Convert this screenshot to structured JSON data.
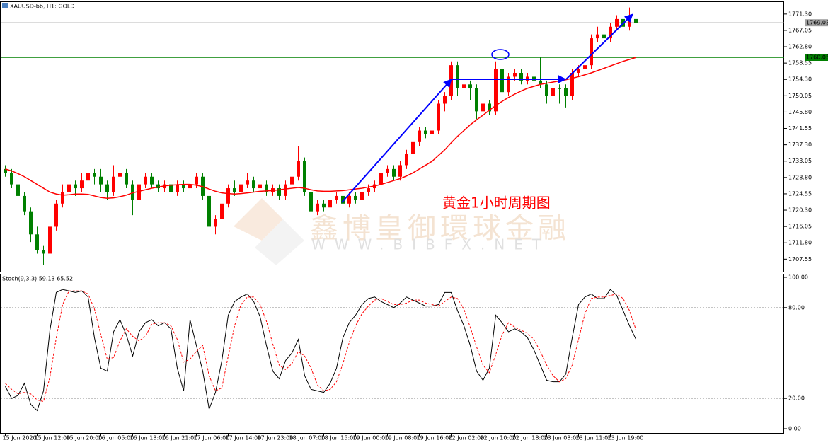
{
  "chart_data": {
    "type": "candlestick",
    "title": "XAUUSD-bb, H1:  GOLD",
    "categories": [
      "15 Jun 2020",
      null,
      null,
      null,
      null,
      "15 Jun 12:00",
      null,
      null,
      null,
      null,
      "15 Jun 20:00",
      null,
      null,
      null,
      null,
      "16 Jun 05:00",
      null,
      null,
      null,
      null,
      "16 Jun 13:00",
      null,
      null,
      null,
      null,
      "16 Jun 21:00",
      null,
      null,
      null,
      null,
      "17 Jun 06:00",
      null,
      null,
      null,
      null,
      "17 Jun 14:00",
      null,
      null,
      null,
      null,
      "17 Jun 23:00",
      null,
      null,
      null,
      null,
      "18 Jun 07:00",
      null,
      null,
      null,
      null,
      "18 Jun 15:00",
      null,
      null,
      null,
      null,
      "19 Jun 00:00",
      null,
      null,
      null,
      null,
      "19 Jun 08:00",
      null,
      null,
      null,
      null,
      "19 Jun 16:00",
      null,
      null,
      null,
      null,
      "22 Jun 02:00",
      null,
      null,
      null,
      null,
      "22 Jun 10:00",
      null,
      null,
      null,
      null,
      "22 Jun 18:00",
      null,
      null,
      null,
      null,
      "23 Jun 03:00",
      null,
      null,
      null,
      null,
      "23 Jun 11:00",
      null,
      null,
      null,
      null,
      "23 Jun 19:00",
      null,
      null,
      null,
      null
    ],
    "ohlc": [
      [
        1731,
        1732,
        1729,
        1730
      ],
      [
        1730,
        1731,
        1726,
        1727
      ],
      [
        1727,
        1728,
        1723,
        1724
      ],
      [
        1724,
        1725,
        1719,
        1720
      ],
      [
        1720,
        1721,
        1712,
        1714
      ],
      [
        1714,
        1716,
        1709,
        1710
      ],
      [
        1710,
        1711,
        1706,
        1709
      ],
      [
        1709,
        1717,
        1708,
        1716
      ],
      [
        1716,
        1723,
        1715,
        1722
      ],
      [
        1722,
        1727,
        1721,
        1725
      ],
      [
        1725,
        1729,
        1724,
        1727
      ],
      [
        1727,
        1728,
        1724,
        1726
      ],
      [
        1726,
        1730,
        1725,
        1728
      ],
      [
        1728,
        1732,
        1727,
        1730
      ],
      [
        1730,
        1731,
        1727,
        1729
      ],
      [
        1729,
        1731,
        1725,
        1727
      ],
      [
        1727,
        1728,
        1723,
        1725
      ],
      [
        1725,
        1732,
        1724,
        1729
      ],
      [
        1729,
        1731,
        1728,
        1730
      ],
      [
        1730,
        1731,
        1726,
        1727
      ],
      [
        1727,
        1728,
        1719,
        1723
      ],
      [
        1723,
        1728,
        1722,
        1727
      ],
      [
        1727,
        1730,
        1726,
        1729
      ],
      [
        1729,
        1730,
        1726,
        1727
      ],
      [
        1727,
        1728,
        1725,
        1726
      ],
      [
        1726,
        1728,
        1725,
        1727
      ],
      [
        1727,
        1728,
        1724,
        1725
      ],
      [
        1725,
        1728,
        1724,
        1727
      ],
      [
        1727,
        1728,
        1725,
        1726
      ],
      [
        1726,
        1729,
        1725,
        1727
      ],
      [
        1727,
        1730,
        1726,
        1729
      ],
      [
        1729,
        1730,
        1723,
        1724
      ],
      [
        1724,
        1725,
        1713,
        1716
      ],
      [
        1716,
        1719,
        1714,
        1718
      ],
      [
        1718,
        1723,
        1717,
        1722
      ],
      [
        1722,
        1727,
        1721,
        1726
      ],
      [
        1726,
        1728,
        1724,
        1725
      ],
      [
        1725,
        1729,
        1724,
        1727
      ],
      [
        1727,
        1730,
        1726,
        1728
      ],
      [
        1728,
        1729,
        1725,
        1726
      ],
      [
        1726,
        1729,
        1725,
        1727
      ],
      [
        1727,
        1728,
        1724,
        1725
      ],
      [
        1725,
        1727,
        1724,
        1726
      ],
      [
        1726,
        1727,
        1723,
        1724
      ],
      [
        1724,
        1728,
        1723,
        1727
      ],
      [
        1727,
        1734,
        1726,
        1729
      ],
      [
        1729,
        1737,
        1728,
        1733
      ],
      [
        1733,
        1734,
        1724,
        1725
      ],
      [
        1725,
        1726,
        1718,
        1720
      ],
      [
        1720,
        1723,
        1719,
        1722
      ],
      [
        1722,
        1723,
        1720,
        1721
      ],
      [
        1721,
        1724,
        1720,
        1723
      ],
      [
        1723,
        1725,
        1722,
        1724
      ],
      [
        1724,
        1725,
        1721,
        1722
      ],
      [
        1722,
        1725,
        1721,
        1724
      ],
      [
        1724,
        1725,
        1722,
        1723
      ],
      [
        1723,
        1726,
        1722,
        1725
      ],
      [
        1725,
        1727,
        1724,
        1726
      ],
      [
        1726,
        1728,
        1725,
        1727
      ],
      [
        1727,
        1731,
        1726,
        1730
      ],
      [
        1730,
        1732,
        1729,
        1731
      ],
      [
        1731,
        1732,
        1728,
        1729
      ],
      [
        1729,
        1733,
        1728,
        1732
      ],
      [
        1732,
        1736,
        1731,
        1735
      ],
      [
        1735,
        1739,
        1734,
        1738
      ],
      [
        1738,
        1742,
        1737,
        1741
      ],
      [
        1741,
        1742,
        1739,
        1740
      ],
      [
        1740,
        1742,
        1739,
        1741
      ],
      [
        1741,
        1749,
        1740,
        1748
      ],
      [
        1748,
        1751,
        1746,
        1750
      ],
      [
        1750,
        1759,
        1749,
        1758
      ],
      [
        1758,
        1759,
        1750,
        1752
      ],
      [
        1752,
        1754,
        1751,
        1753
      ],
      [
        1753,
        1754,
        1749,
        1752
      ],
      [
        1752,
        1753,
        1744,
        1746
      ],
      [
        1746,
        1749,
        1745,
        1748
      ],
      [
        1748,
        1749,
        1745,
        1746
      ],
      [
        1746,
        1759,
        1745,
        1757
      ],
      [
        1757,
        1763,
        1750,
        1751
      ],
      [
        1751,
        1756,
        1750,
        1755
      ],
      [
        1755,
        1757,
        1754,
        1756
      ],
      [
        1756,
        1757,
        1753,
        1754
      ],
      [
        1754,
        1756,
        1753,
        1755
      ],
      [
        1755,
        1756,
        1752,
        1754
      ],
      [
        1754,
        1760,
        1752,
        1753
      ],
      [
        1753,
        1754,
        1748,
        1750
      ],
      [
        1750,
        1753,
        1749,
        1752
      ],
      [
        1752,
        1753,
        1748,
        1752
      ],
      [
        1752,
        1753,
        1747,
        1750
      ],
      [
        1750,
        1757,
        1749,
        1756
      ],
      [
        1756,
        1758,
        1755,
        1757
      ],
      [
        1757,
        1759,
        1756,
        1758
      ],
      [
        1758,
        1766,
        1757,
        1765
      ],
      [
        1765,
        1768,
        1764,
        1766
      ],
      [
        1766,
        1767,
        1763,
        1765
      ],
      [
        1765,
        1769,
        1764,
        1768
      ],
      [
        1768,
        1771,
        1767,
        1770
      ],
      [
        1770,
        1771,
        1766,
        1768
      ],
      [
        1768,
        1773,
        1767,
        1770
      ],
      [
        1770,
        1771,
        1768,
        1769
      ]
    ],
    "up_color": "#ff0000",
    "down_color": "#008000",
    "ma": {
      "color": "#ff0000",
      "values": [
        1731,
        1730.5,
        1729.8,
        1729,
        1728,
        1727,
        1726,
        1725,
        1724.5,
        1724.2,
        1724.3,
        1724.5,
        1724.5,
        1724.4,
        1724,
        1723.6,
        1723.4,
        1723.5,
        1723.8,
        1724.2,
        1724.8,
        1725.2,
        1725.6,
        1726,
        1726.3,
        1726.6,
        1726.8,
        1726.9,
        1727,
        1727,
        1726.8,
        1726.4,
        1725.8,
        1725.2,
        1724.8,
        1724.6,
        1724.5,
        1724.6,
        1724.8,
        1725,
        1725.2,
        1725.3,
        1725.4,
        1725.6,
        1725.8,
        1726,
        1726.2,
        1726,
        1725.6,
        1725.3,
        1725.2,
        1725.2,
        1725.3,
        1725.4,
        1725.6,
        1725.8,
        1726,
        1726.3,
        1726.6,
        1727,
        1727.5,
        1728,
        1728.5,
        1729.2,
        1730,
        1731,
        1732,
        1733,
        1734.5,
        1736,
        1737.8,
        1739.5,
        1741,
        1742.5,
        1743.8,
        1745,
        1746.3,
        1747.5,
        1748.6,
        1749.6,
        1750.5,
        1751.3,
        1752,
        1752.5,
        1753,
        1753.3,
        1753.6,
        1753.9,
        1754.2,
        1754.6,
        1755,
        1755.5,
        1756,
        1756.6,
        1757.2,
        1757.8,
        1758.4,
        1759,
        1759.5,
        1760
      ]
    },
    "hlines": [
      {
        "value": 1769.03,
        "color": "#a0a0a0"
      },
      {
        "value": 1760.05,
        "color": "#008000"
      }
    ],
    "ylim": [
      1704.3,
      1774.4
    ],
    "yticks": [
      {
        "value": 1771.3,
        "label": "1771.30"
      },
      {
        "value": 1767.05,
        "label": "1767.05"
      },
      {
        "value": 1762.8,
        "label": "1762.80"
      },
      {
        "value": 1758.55,
        "label": "1758.55"
      },
      {
        "value": 1754.3,
        "label": "1754.30"
      },
      {
        "value": 1750.05,
        "label": "1750.05"
      },
      {
        "value": 1745.8,
        "label": "1745.80"
      },
      {
        "value": 1741.55,
        "label": "1741.55"
      },
      {
        "value": 1737.3,
        "label": "1737.30"
      },
      {
        "value": 1733.05,
        "label": "1733.05"
      },
      {
        "value": 1728.8,
        "label": "1728.80"
      },
      {
        "value": 1724.55,
        "label": "1724.55"
      },
      {
        "value": 1720.3,
        "label": "1720.30"
      },
      {
        "value": 1716.05,
        "label": "1716.05"
      },
      {
        "value": 1711.8,
        "label": "1711.80"
      },
      {
        "value": 1707.55,
        "label": "1707.55"
      }
    ],
    "annotation": "黄金1小时周期图",
    "watermark": "鑫博皇御環球金融",
    "watermark_url": "WWW.BIBFX.NET",
    "stoch": {
      "title": "Stoch(9,3,3) 59.13 65.52",
      "ylim": [
        0,
        100
      ],
      "yticks": [
        {
          "value": 100,
          "label": "100.00"
        },
        {
          "value": 80,
          "label": "80.00"
        },
        {
          "value": 20,
          "label": "20.00"
        },
        {
          "value": 0,
          "label": "0.00"
        }
      ],
      "main": {
        "color": "#000000",
        "values": [
          28,
          20,
          22,
          30,
          16,
          12,
          25,
          65,
          90,
          92,
          91,
          90,
          91,
          87,
          60,
          40,
          38,
          64,
          72,
          62,
          48,
          64,
          70,
          72,
          68,
          70,
          66,
          40,
          25,
          72,
          55,
          38,
          13,
          24,
          45,
          75,
          84,
          87,
          89,
          84,
          74,
          55,
          38,
          33,
          45,
          50,
          59,
          35,
          26,
          25,
          24,
          30,
          40,
          60,
          70,
          75,
          82,
          86,
          87,
          84,
          82,
          80,
          83,
          87,
          85,
          83,
          81,
          81,
          82,
          90,
          90,
          78,
          68,
          55,
          38,
          32,
          40,
          75,
          70,
          64,
          66,
          64,
          60,
          52,
          42,
          32,
          31,
          31,
          36,
          60,
          82,
          87,
          89,
          86,
          86,
          92,
          88,
          78,
          68,
          59.13
        ]
      },
      "signal": {
        "color": "#ff0000",
        "values": [
          30,
          26,
          23,
          24,
          23,
          19,
          18,
          34,
          60,
          82,
          91,
          91,
          91,
          89,
          79,
          62,
          46,
          47,
          58,
          66,
          61,
          58,
          61,
          69,
          70,
          70,
          68,
          59,
          44,
          46,
          51,
          55,
          35,
          25,
          27,
          48,
          68,
          82,
          87,
          87,
          82,
          71,
          56,
          42,
          39,
          43,
          51,
          48,
          40,
          29,
          25,
          26,
          31,
          43,
          57,
          68,
          76,
          81,
          85,
          86,
          84,
          82,
          82,
          83,
          85,
          85,
          83,
          82,
          81,
          84,
          87,
          86,
          79,
          67,
          54,
          42,
          37,
          49,
          62,
          70,
          67,
          65,
          63,
          59,
          51,
          42,
          35,
          31,
          33,
          42,
          59,
          76,
          86,
          87,
          87,
          88,
          89,
          86,
          78,
          65.52
        ]
      }
    }
  }
}
